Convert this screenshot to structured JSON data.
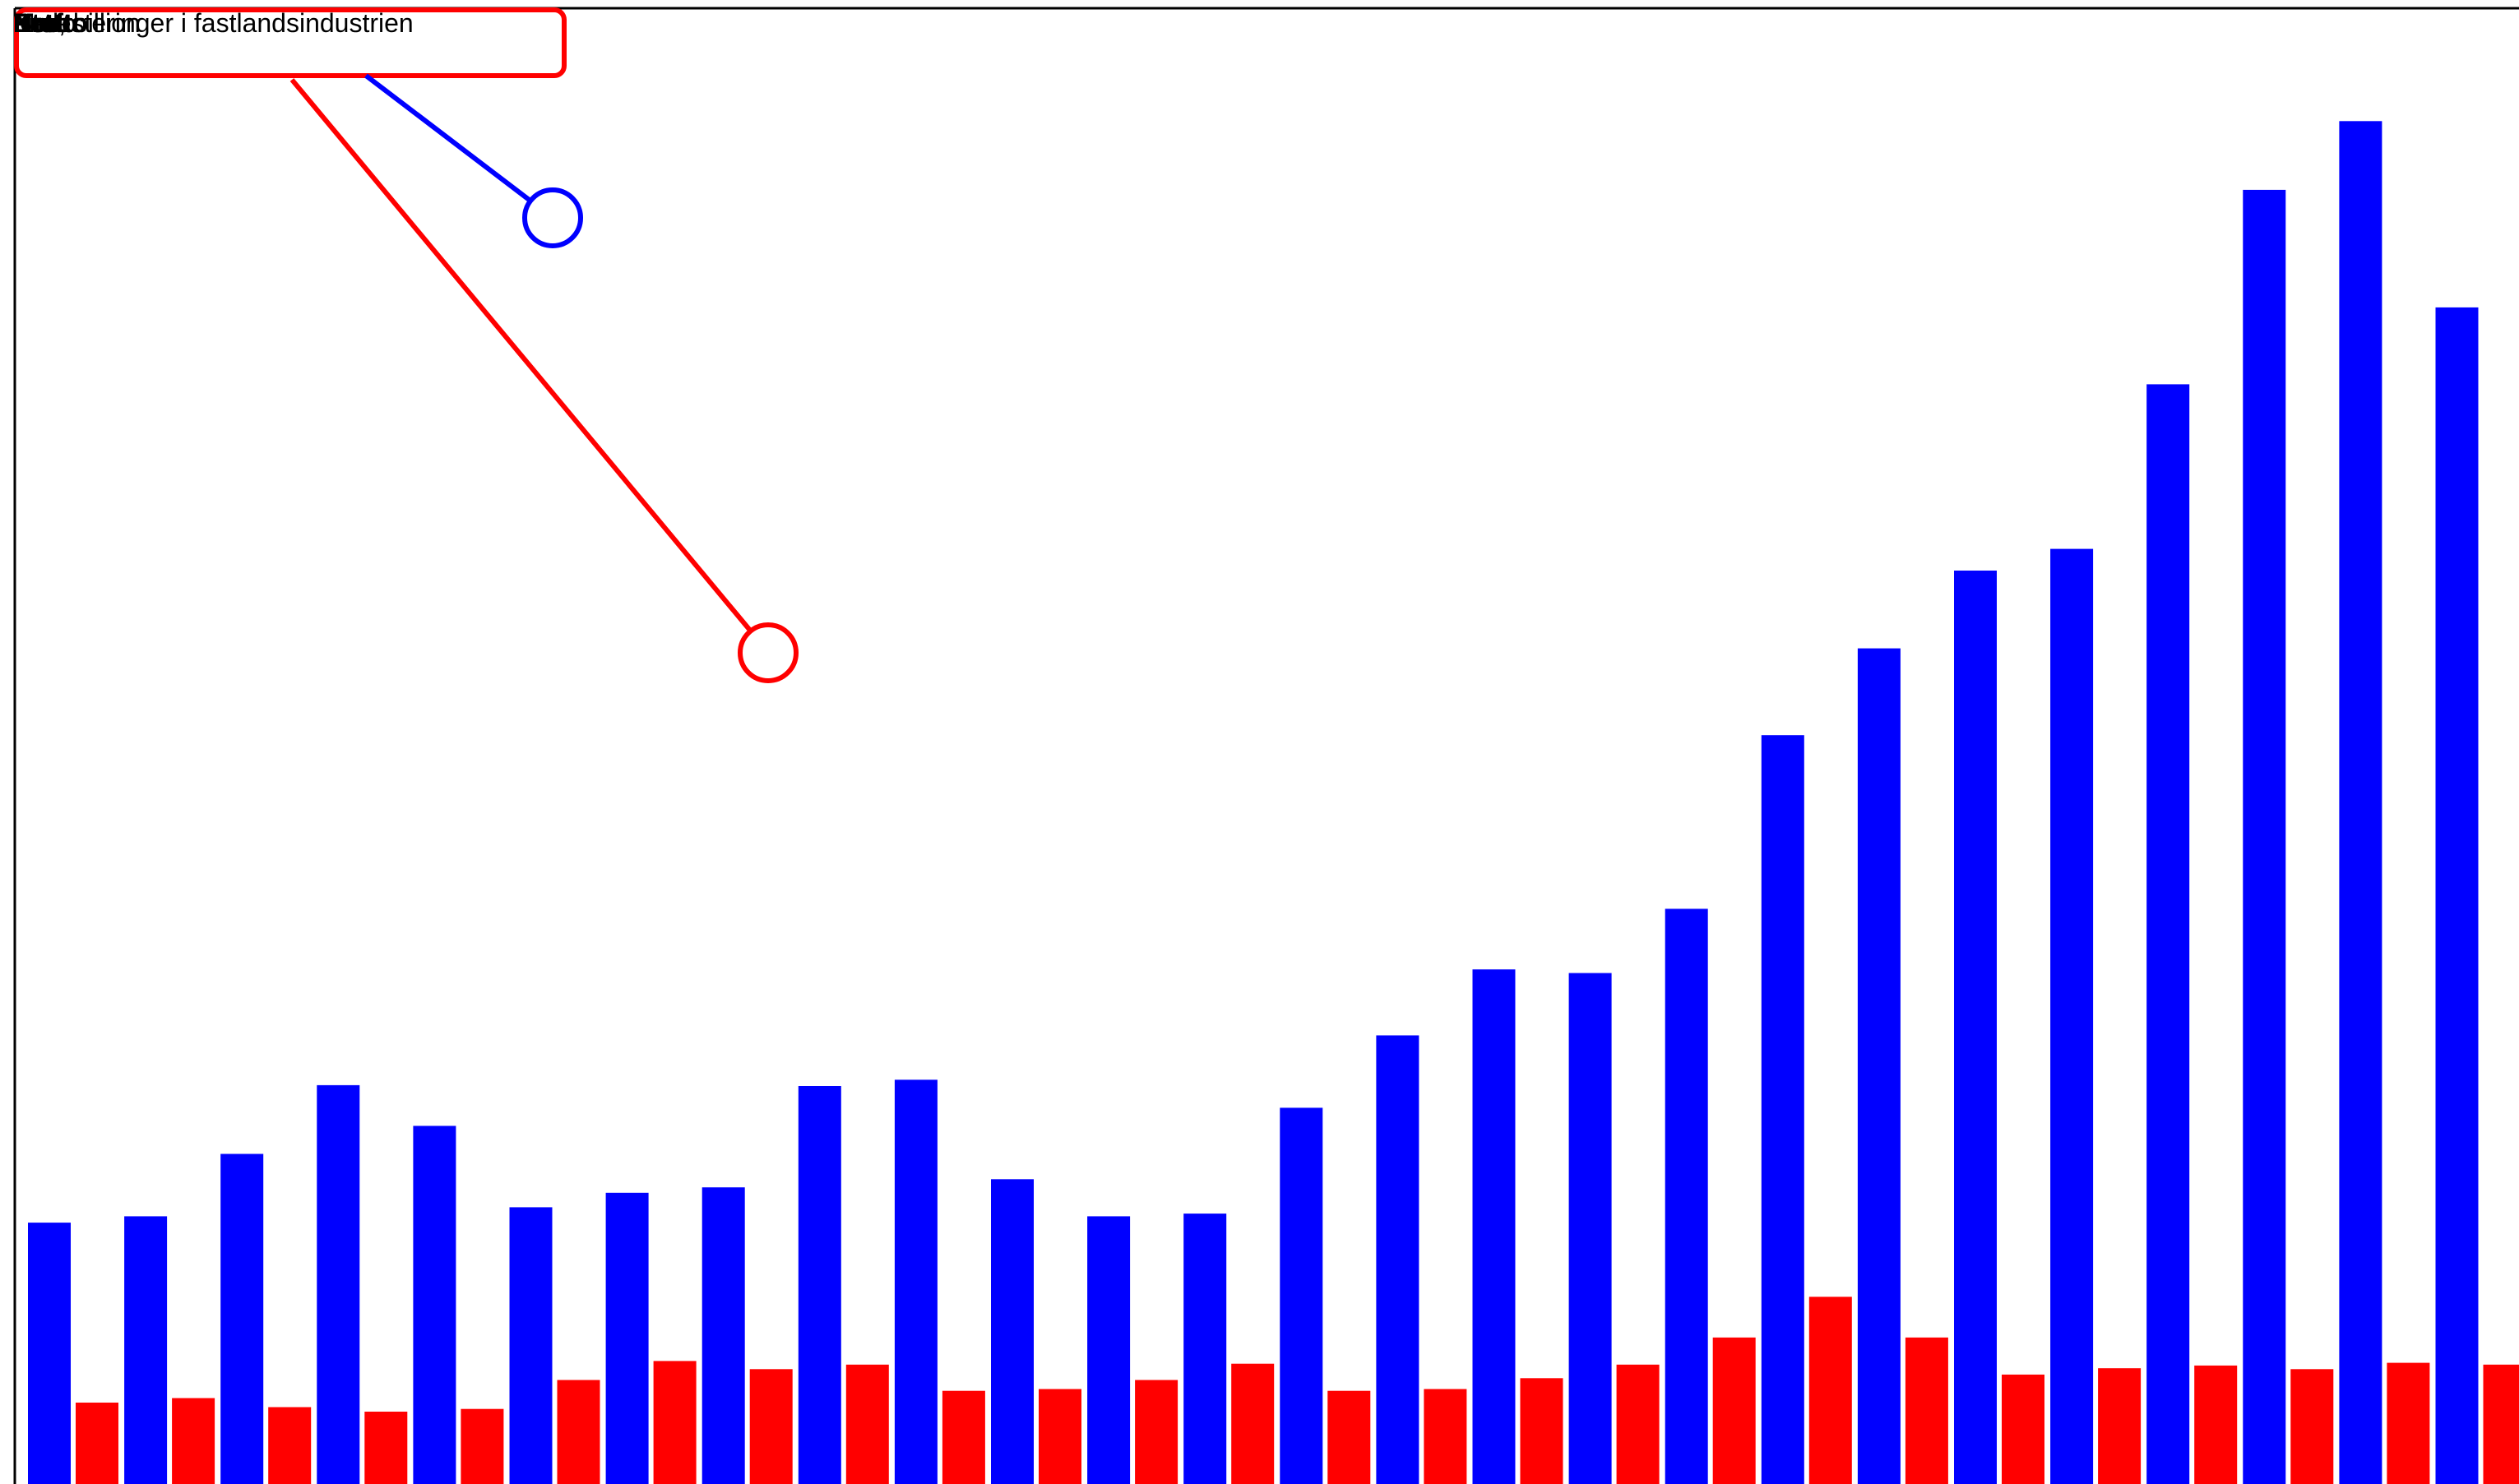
{
  "chart_data": {
    "type": "bar",
    "categories": [
      "",
      "",
      "",
      "",
      "",
      "",
      "",
      "",
      "",
      "",
      "",
      "",
      "",
      "",
      "",
      "",
      "",
      "",
      "",
      "",
      "",
      "",
      "",
      "",
      "",
      ""
    ],
    "series": [
      {
        "values": [
          28.9,
          29.6,
          36.5,
          44.1,
          39.6,
          30.6,
          32.2,
          32.8,
          44.0,
          44.7,
          33.7,
          29.6,
          29.9,
          41.6,
          49.6,
          56.9,
          56.5,
          63.6,
          82.8,
          92.4,
          101.0,
          103.4,
          121.6,
          143.1,
          150.7,
          130.1
        ],
        "color": "#0000ff"
      },
      {
        "values": [
          9.0,
          9.5,
          8.5,
          8.0,
          8.3,
          11.5,
          13.6,
          12.7,
          13.2,
          10.3,
          10.5,
          11.5,
          13.3,
          10.3,
          10.5,
          11.7,
          13.2,
          16.2,
          20.7,
          16.2,
          12.1,
          12.8,
          13.1,
          12.7,
          13.4,
          13.2
        ]
      }
    ],
    "ylim": [
      0,
      160
    ],
    "grid": false,
    "legend": "none"
  },
  "labels": {
    "overlap_text_1": "Kraft",
    "overlap_text_2": "Brutto",
    "overlap_text_3": "Nto",
    "overlap_text_4": "Pct",
    "overlap_text_5": "Netto",
    "overlap_text_6": "Investeringer i fastlandsindustrien",
    "overlap_text_7": "Mrd, billion"
  },
  "colors": {
    "series_blue": "#0000ff",
    "series_red": "#ff0000",
    "frame": "#000000",
    "callout_box": "#ff0000",
    "callout_blue": "#0000ff",
    "callout_red": "#ff0000"
  }
}
